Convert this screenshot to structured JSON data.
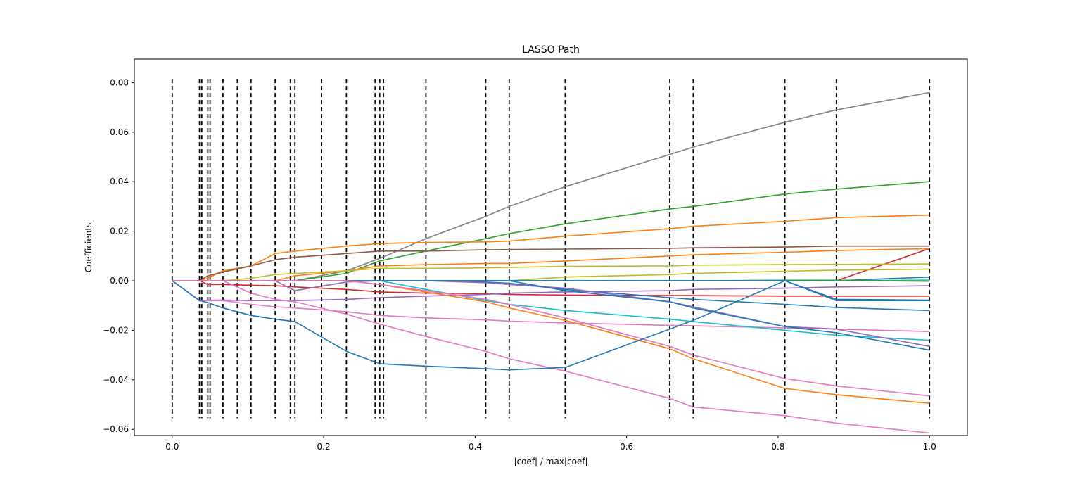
{
  "chart_data": {
    "type": "line",
    "title": "LASSO Path",
    "xlabel": "|coef| / max|coef|",
    "ylabel": "Coefficients",
    "xlim": [
      -0.05,
      1.05
    ],
    "ylim": [
      -0.0625,
      0.0895
    ],
    "xticks": [
      0.0,
      0.2,
      0.4,
      0.6,
      0.8,
      1.0
    ],
    "xtick_labels": [
      "0.0",
      "0.2",
      "0.4",
      "0.6",
      "0.8",
      "1.0"
    ],
    "yticks": [
      0.08,
      0.06,
      0.04,
      0.02,
      0.0,
      -0.02,
      -0.04,
      -0.06
    ],
    "ytick_labels": [
      "0.08",
      "0.06",
      "0.04",
      "0.02",
      "0.00",
      "−0.02",
      "−0.04",
      "−0.06"
    ],
    "grid": false,
    "legend": "none",
    "vlines": {
      "x": [
        0.0,
        0.036,
        0.039,
        0.047,
        0.05,
        0.067,
        0.086,
        0.104,
        0.136,
        0.156,
        0.162,
        0.197,
        0.23,
        0.268,
        0.274,
        0.279,
        0.335,
        0.414,
        0.445,
        0.519,
        0.657,
        0.688,
        0.809,
        0.877,
        1.0
      ],
      "ymin": -0.0555,
      "ymax": 0.0815,
      "color": "#000000",
      "style": "dashed"
    },
    "x": [
      0.0,
      0.036,
      0.047,
      0.067,
      0.104,
      0.136,
      0.162,
      0.23,
      0.274,
      0.335,
      0.414,
      0.445,
      0.519,
      0.657,
      0.688,
      0.809,
      0.877,
      1.0
    ],
    "series": [
      {
        "color": "#7f7f7f",
        "values": [
          0,
          0,
          0,
          0,
          0,
          0,
          0,
          0.004,
          0.009,
          0.017,
          0.026,
          0.03,
          0.038,
          0.051,
          0.054,
          0.064,
          0.069,
          0.076
        ]
      },
      {
        "color": "#2ca02c",
        "values": [
          0,
          0,
          0,
          0,
          0,
          0,
          0,
          0.003,
          0.008,
          0.012,
          0.017,
          0.019,
          0.023,
          0.029,
          0.03,
          0.035,
          0.037,
          0.04
        ]
      },
      {
        "color": "#ff7f0e",
        "values": [
          0,
          0,
          0.001,
          0.004,
          0.006,
          0.011,
          0.012,
          0.014,
          0.015,
          0.0155,
          0.0157,
          0.016,
          0.018,
          0.021,
          0.022,
          0.024,
          0.0255,
          0.0265
        ]
      },
      {
        "color": "#8c564b",
        "values": [
          0,
          0,
          0.002,
          0.0035,
          0.006,
          0.0085,
          0.0095,
          0.011,
          0.012,
          0.012,
          0.0125,
          0.0126,
          0.0128,
          0.0131,
          0.0133,
          0.0136,
          0.014,
          0.014
        ]
      },
      {
        "color": "#d62728",
        "values": [
          0,
          0,
          0,
          0,
          0,
          0,
          0,
          0,
          0,
          0,
          0,
          0,
          0,
          0,
          0,
          0,
          0,
          0.013
        ]
      },
      {
        "color": "#ff7f0e",
        "values": [
          0,
          0,
          0,
          0,
          0,
          0,
          0.002,
          0.004,
          0.006,
          0.0065,
          0.007,
          0.007,
          0.008,
          0.01,
          0.0105,
          0.0115,
          0.0122,
          0.013
        ]
      },
      {
        "color": "#bcbd22",
        "values": [
          0,
          0,
          0,
          0,
          0.001,
          0.0025,
          0.003,
          0.004,
          0.005,
          0.005,
          0.0052,
          0.0054,
          0.0058,
          0.006,
          0.0063,
          0.0065,
          0.0066,
          0.0068
        ]
      },
      {
        "color": "#bcbd22",
        "values": [
          0,
          0,
          0,
          0,
          0,
          0,
          0,
          0,
          0,
          0,
          0,
          0,
          0.0015,
          0.0025,
          0.003,
          0.0038,
          0.0043,
          0.0047
        ]
      },
      {
        "color": "#1f77b4",
        "values": [
          0,
          0,
          0,
          0,
          0,
          0,
          0,
          0,
          0,
          0,
          0,
          0,
          0,
          0,
          0,
          0,
          0,
          0.0015
        ]
      },
      {
        "color": "#17becf",
        "values": [
          0,
          0,
          0,
          0,
          0,
          0,
          0,
          0,
          0,
          0,
          0,
          0,
          0,
          0,
          0,
          0,
          0,
          0.0003
        ]
      },
      {
        "color": "#2ca02c",
        "values": [
          0,
          0,
          0,
          0,
          0,
          0,
          0,
          0,
          0,
          0,
          0,
          0,
          0,
          0,
          0,
          0.0002,
          0.0002,
          -0.0002
        ]
      },
      {
        "color": "#d62728",
        "values": [
          0,
          0,
          -0.0015,
          -0.0015,
          -0.0018,
          -0.002,
          -0.0025,
          -0.0035,
          -0.0045,
          -0.005,
          -0.0052,
          -0.0055,
          -0.0058,
          -0.006,
          -0.006,
          -0.0062,
          -0.0062,
          -0.0062
        ]
      },
      {
        "color": "#9467bd",
        "values": [
          0,
          -0.008,
          -0.0078,
          -0.0078,
          -0.008,
          -0.008,
          -0.008,
          -0.0075,
          -0.0068,
          -0.0062,
          -0.0055,
          -0.005,
          -0.0045,
          -0.004,
          -0.0035,
          -0.003,
          -0.0025,
          -0.002
        ]
      },
      {
        "color": "#1f77b4",
        "values": [
          0,
          0,
          0,
          0,
          0,
          0,
          0,
          0,
          0,
          0,
          -0.0005,
          -0.001,
          -0.0035,
          -0.0068,
          -0.0075,
          -0.0095,
          -0.0108,
          -0.012
        ]
      },
      {
        "color": "#1f77b4",
        "values": [
          0,
          0,
          0,
          0,
          0,
          0,
          0,
          0,
          0,
          0,
          0,
          0,
          0,
          0,
          0,
          0,
          -0.0075,
          -0.0078
        ]
      },
      {
        "color": "#e377c2",
        "values": [
          0,
          -0.008,
          -0.008,
          -0.008,
          -0.0095,
          -0.0105,
          -0.011,
          -0.0125,
          -0.014,
          -0.015,
          -0.0158,
          -0.0163,
          -0.017,
          -0.018,
          -0.0182,
          -0.019,
          -0.0195,
          -0.0205
        ]
      },
      {
        "color": "#17becf",
        "values": [
          0,
          0,
          0,
          0,
          0,
          0,
          0,
          0,
          0,
          -0.0035,
          -0.008,
          -0.0095,
          -0.012,
          -0.0155,
          -0.0165,
          -0.02,
          -0.022,
          -0.024
        ]
      },
      {
        "color": "#9467bd",
        "values": [
          0,
          0,
          0,
          0,
          0,
          0,
          -0.004,
          -0.0005,
          0,
          0,
          -0.0008,
          -0.0015,
          -0.003,
          -0.0085,
          -0.0105,
          -0.0185,
          -0.0195,
          -0.0265
        ]
      },
      {
        "color": "#1f77b4",
        "values": [
          0,
          0,
          0,
          0,
          0,
          0,
          0,
          0,
          0,
          0,
          0,
          0,
          -0.004,
          -0.0085,
          -0.011,
          -0.0185,
          -0.021,
          -0.028
        ]
      },
      {
        "color": "#e377c2",
        "values": [
          0,
          0,
          0,
          0,
          -0.005,
          -0.0075,
          -0.0085,
          -0.0135,
          -0.0175,
          -0.0225,
          -0.0285,
          -0.0315,
          -0.0365,
          -0.0475,
          -0.051,
          -0.0545,
          -0.0575,
          -0.0615
        ]
      },
      {
        "color": "#ff7f0e",
        "values": [
          0,
          0,
          0,
          0,
          0,
          0,
          0,
          0,
          -0.0015,
          -0.0045,
          -0.0085,
          -0.011,
          -0.016,
          -0.0275,
          -0.0315,
          -0.0435,
          -0.046,
          -0.0495
        ]
      },
      {
        "color": "#e377c2",
        "values": [
          0,
          0,
          0,
          0,
          0,
          0,
          0,
          0,
          -0.0015,
          -0.004,
          -0.0075,
          -0.0095,
          -0.015,
          -0.0265,
          -0.03,
          -0.0395,
          -0.0425,
          -0.0465
        ]
      },
      {
        "color": "#1f77b4",
        "values": [
          0,
          -0.008,
          -0.0088,
          -0.011,
          -0.014,
          -0.0155,
          -0.0165,
          -0.0285,
          -0.0335,
          -0.0345,
          -0.0355,
          -0.036,
          -0.035,
          -0.0195,
          -0.016,
          0,
          -0.008,
          -0.008
        ]
      }
    ]
  }
}
